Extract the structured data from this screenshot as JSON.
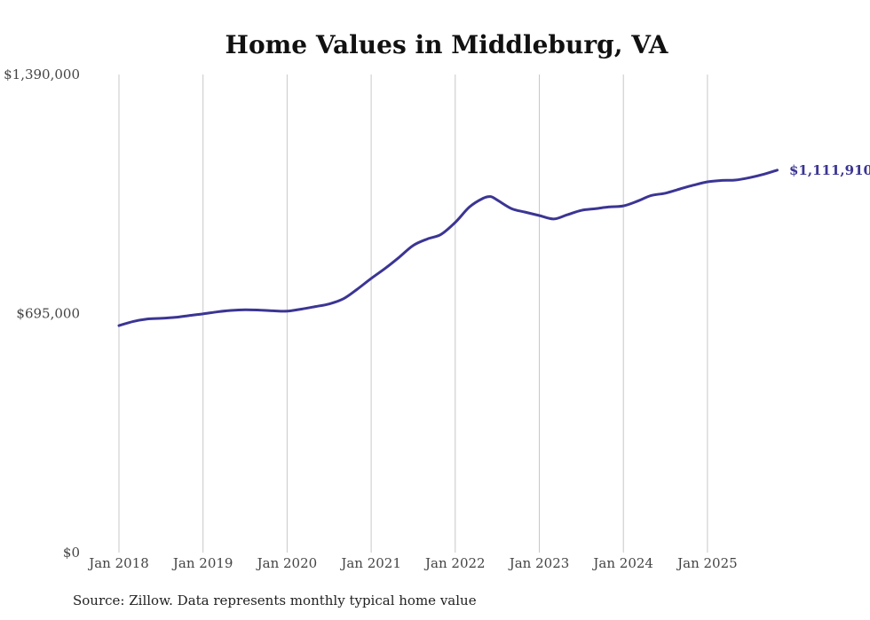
{
  "chart_data": {
    "type": "line",
    "title": "Home Values in Middleburg, VA",
    "xlabel": "",
    "ylabel": "",
    "ylim": [
      0,
      1390000
    ],
    "y_ticks": [
      {
        "value": 0,
        "label": "$0"
      },
      {
        "value": 695000,
        "label": "$695,000"
      },
      {
        "value": 1390000,
        "label": "$1,390,000"
      }
    ],
    "x_range": [
      2018.0,
      2025.9
    ],
    "x_ticks": [
      {
        "value": 2018,
        "label": "Jan 2018"
      },
      {
        "value": 2019,
        "label": "Jan 2019"
      },
      {
        "value": 2020,
        "label": "Jan 2020"
      },
      {
        "value": 2021,
        "label": "Jan 2021"
      },
      {
        "value": 2022,
        "label": "Jan 2022"
      },
      {
        "value": 2023,
        "label": "Jan 2023"
      },
      {
        "value": 2024,
        "label": "Jan 2024"
      },
      {
        "value": 2025,
        "label": "Jan 2025"
      }
    ],
    "grid": "vertical",
    "series": [
      {
        "name": "Typical home value",
        "color": "#3b3594",
        "x": [
          2018.0,
          2018.17,
          2018.33,
          2018.5,
          2018.67,
          2018.83,
          2019.0,
          2019.17,
          2019.33,
          2019.5,
          2019.67,
          2019.83,
          2020.0,
          2020.17,
          2020.33,
          2020.5,
          2020.67,
          2020.83,
          2021.0,
          2021.17,
          2021.33,
          2021.5,
          2021.67,
          2021.83,
          2022.0,
          2022.17,
          2022.33,
          2022.42,
          2022.5,
          2022.67,
          2022.83,
          2023.0,
          2023.17,
          2023.33,
          2023.5,
          2023.67,
          2023.83,
          2024.0,
          2024.17,
          2024.33,
          2024.5,
          2024.67,
          2024.83,
          2025.0,
          2025.17,
          2025.33,
          2025.5,
          2025.67,
          2025.83
        ],
        "values": [
          660000,
          672000,
          679000,
          681000,
          684000,
          689000,
          694000,
          700000,
          704000,
          706000,
          705000,
          703000,
          702000,
          708000,
          715000,
          723000,
          738000,
          765000,
          797000,
          827000,
          858000,
          893000,
          912000,
          925000,
          960000,
          1005000,
          1030000,
          1035000,
          1025000,
          1000000,
          990000,
          980000,
          970000,
          982000,
          995000,
          1000000,
          1005000,
          1008000,
          1022000,
          1038000,
          1045000,
          1057000,
          1068000,
          1078000,
          1082000,
          1083000,
          1090000,
          1100000,
          1111910
        ]
      }
    ],
    "end_label": "$1,111,910",
    "source": "Source: Zillow. Data represents monthly typical home value"
  }
}
